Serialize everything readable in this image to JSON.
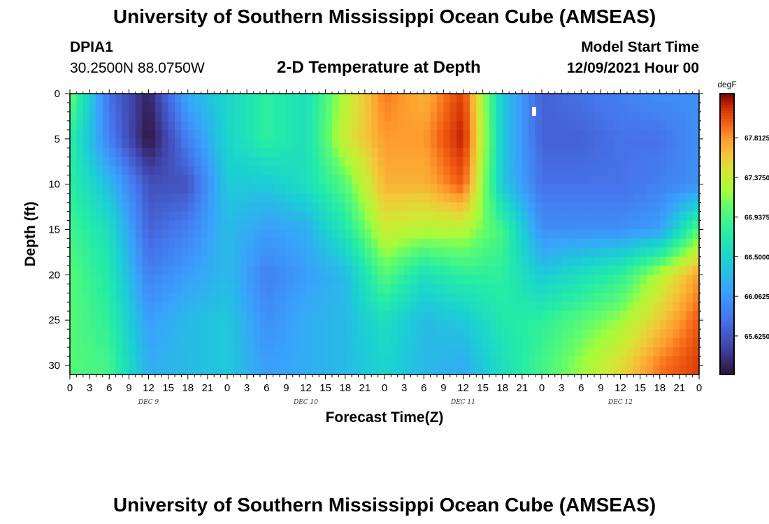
{
  "header": {
    "title": "University of Southern Mississippi Ocean Cube (AMSEAS)",
    "station": "DPIA1",
    "coords": "30.2500N  88.0750W",
    "subtitle": "2-D Temperature at Depth",
    "start_label": "Model Start Time",
    "start_value": "12/09/2021 Hour 00"
  },
  "footer": {
    "title": "University of Southern Mississippi Ocean Cube (AMSEAS)"
  },
  "chart_data": {
    "type": "heatmap",
    "title": "2-D Temperature at Depth",
    "xlabel": "Forecast Time(Z)",
    "ylabel": "Depth (ft)",
    "x_tick_labels": [
      "0",
      "3",
      "6",
      "9",
      "12",
      "15",
      "18",
      "21",
      "0",
      "3",
      "6",
      "9",
      "12",
      "15",
      "18",
      "21",
      "0",
      "3",
      "6",
      "9",
      "12",
      "15",
      "18",
      "21",
      "0",
      "3",
      "6",
      "9",
      "12",
      "15",
      "18",
      "21",
      "0"
    ],
    "day_labels": [
      "DEC 9",
      "DEC 10",
      "DEC 11",
      "DEC 12"
    ],
    "x_range_hours": [
      0,
      96
    ],
    "y_ticks": [
      0,
      5,
      10,
      15,
      20,
      25,
      30
    ],
    "y_range_ft": [
      0,
      31
    ],
    "y_inverted": true,
    "colorbar": {
      "unit": "degF",
      "tick_labels": [
        "67.8125",
        "67.3750",
        "66.9375",
        "66.5000",
        "66.0625",
        "65.6250"
      ],
      "tick_values": [
        67.8125,
        67.375,
        66.9375,
        66.5,
        66.0625,
        65.625
      ],
      "range": [
        65.2,
        68.3
      ],
      "colormap": "turbo"
    },
    "x_hours": [
      0,
      6,
      12,
      18,
      24,
      30,
      36,
      42,
      48,
      54,
      60,
      66,
      72,
      78,
      84,
      90,
      96
    ],
    "depths_ft": [
      0,
      5,
      10,
      15,
      20,
      25,
      30
    ],
    "temperature_degF": [
      [
        67.1,
        65.8,
        65.3,
        66.2,
        66.5,
        66.8,
        66.6,
        67.3,
        67.9,
        67.7,
        68.1,
        66.4,
        65.7,
        65.8,
        65.9,
        66.0,
        66.0
      ],
      [
        66.8,
        65.9,
        65.2,
        65.9,
        66.5,
        66.8,
        66.6,
        67.4,
        67.8,
        67.8,
        68.2,
        66.4,
        65.7,
        65.7,
        65.8,
        65.8,
        66.0
      ],
      [
        66.8,
        66.3,
        65.6,
        65.6,
        66.4,
        66.4,
        66.6,
        67.0,
        67.7,
        67.7,
        68.0,
        66.4,
        65.8,
        65.8,
        65.8,
        65.9,
        66.0
      ],
      [
        66.9,
        66.6,
        65.7,
        65.9,
        66.3,
        66.1,
        66.2,
        66.7,
        67.4,
        67.3,
        67.3,
        66.9,
        66.0,
        66.0,
        66.0,
        66.1,
        67.0
      ],
      [
        67.0,
        66.7,
        65.9,
        66.1,
        66.3,
        65.9,
        66.1,
        66.3,
        67.0,
        66.6,
        66.8,
        66.8,
        66.4,
        66.6,
        66.8,
        67.3,
        67.8
      ],
      [
        67.0,
        66.8,
        66.1,
        66.3,
        66.4,
        66.0,
        66.2,
        66.3,
        66.6,
        66.3,
        66.4,
        66.7,
        66.8,
        67.0,
        67.2,
        67.6,
        68.0
      ],
      [
        67.0,
        66.9,
        66.2,
        66.3,
        66.4,
        66.1,
        66.2,
        66.3,
        66.5,
        66.3,
        66.2,
        66.6,
        66.9,
        67.2,
        67.5,
        67.9,
        68.1
      ]
    ]
  }
}
